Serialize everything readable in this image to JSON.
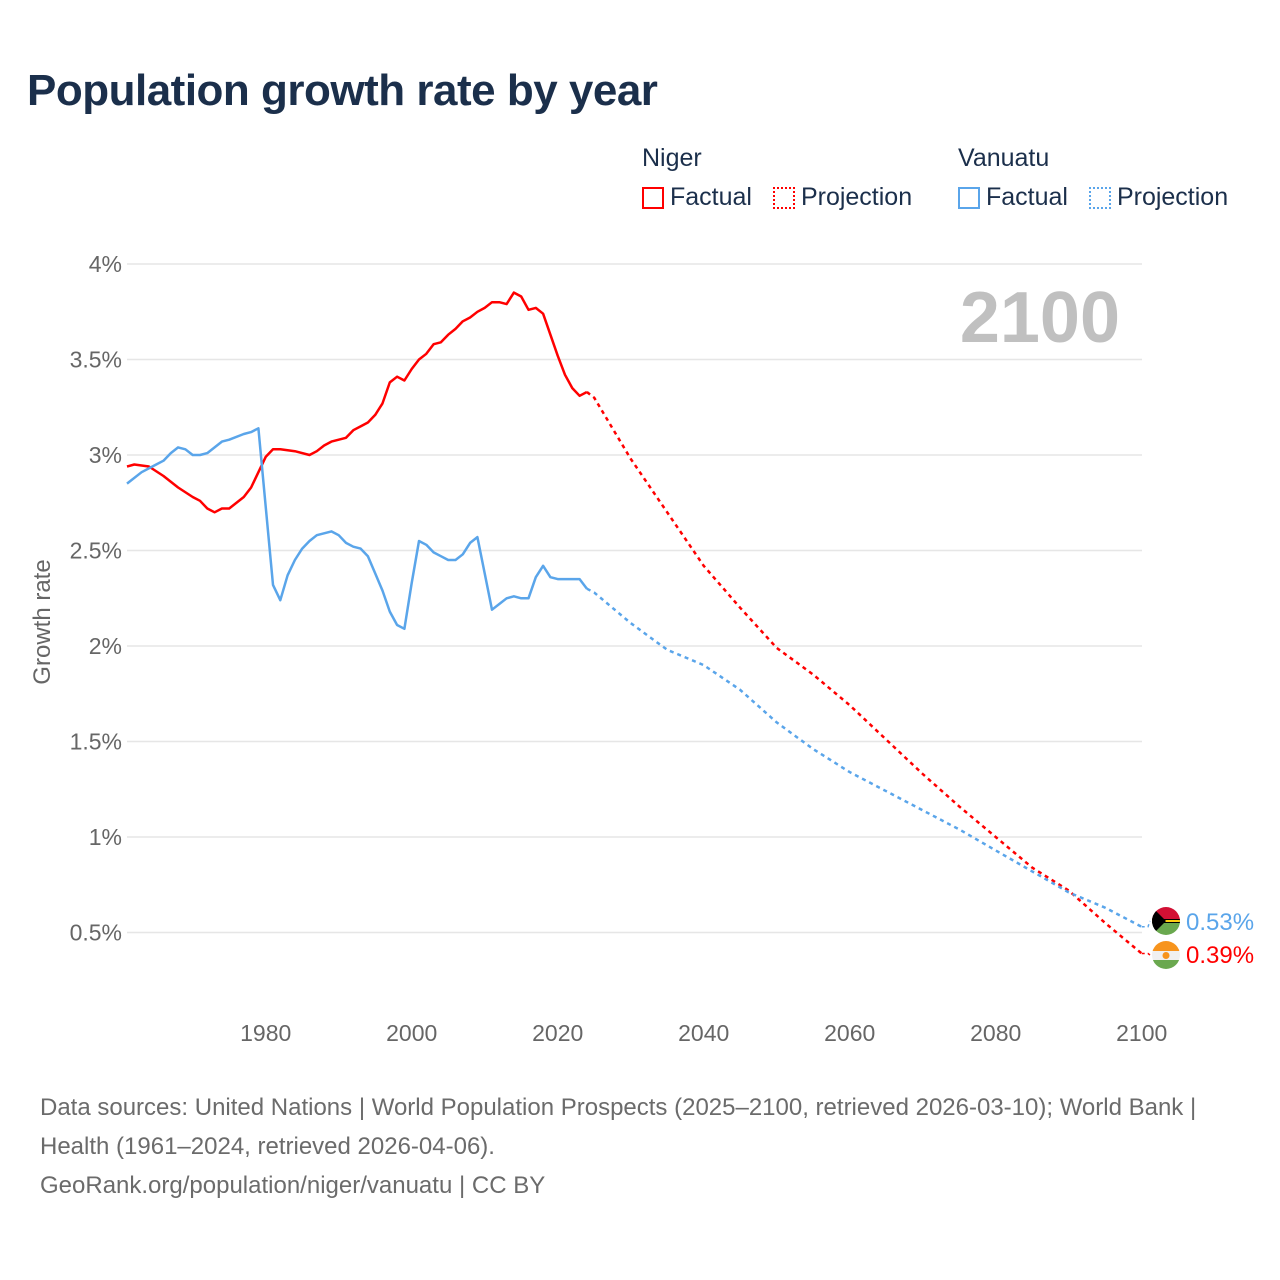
{
  "title": "Population growth rate by year",
  "legend": {
    "groups": [
      {
        "name": "Niger",
        "items": [
          "Factual",
          "Projection"
        ],
        "color": "#ff0000"
      },
      {
        "name": "Vanuatu",
        "items": [
          "Factual",
          "Projection"
        ],
        "color": "#5aa5ea"
      }
    ]
  },
  "year_display": "2100",
  "footer": {
    "sources": "Data sources: United Nations | World Population Prospects (2025–2100, retrieved 2026-03-10); World Bank | Health (1961–2024, retrieved 2026-04-06).",
    "link": "GeoRank.org/population/niger/vanuatu | CC BY"
  },
  "chart_data": {
    "type": "line",
    "title": "Population growth rate by year",
    "xlabel": "",
    "ylabel": "Growth rate",
    "xlim": [
      1961,
      2100
    ],
    "ylim": [
      0.2,
      4.0
    ],
    "x_ticks": [
      1980,
      2000,
      2020,
      2040,
      2060,
      2080,
      2100
    ],
    "y_ticks": [
      0.5,
      1,
      1.5,
      2,
      2.5,
      3,
      3.5,
      4
    ],
    "y_tick_labels": [
      "0.5%",
      "1%",
      "1.5%",
      "2%",
      "2.5%",
      "3%",
      "3.5%",
      "4%"
    ],
    "grid": true,
    "series": [
      {
        "name": "Niger",
        "color": "#ff0000",
        "end_label": "0.39%",
        "factual": {
          "x": [
            1961,
            1962,
            1964,
            1966,
            1968,
            1970,
            1971,
            1972,
            1973,
            1974,
            1975,
            1977,
            1978,
            1979,
            1980,
            1981,
            1982,
            1984,
            1986,
            1987,
            1988,
            1989,
            1991,
            1992,
            1993,
            1994,
            1995,
            1996,
            1997,
            1998,
            1999,
            2000,
            2001,
            2002,
            2003,
            2004,
            2005,
            2006,
            2007,
            2008,
            2009,
            2010,
            2011,
            2012,
            2013,
            2014,
            2015,
            2016,
            2017,
            2018,
            2019,
            2020,
            2021,
            2022,
            2023,
            2024
          ],
          "y": [
            2.94,
            2.95,
            2.94,
            2.89,
            2.83,
            2.78,
            2.76,
            2.72,
            2.7,
            2.72,
            2.72,
            2.78,
            2.83,
            2.91,
            2.99,
            3.03,
            3.03,
            3.02,
            3.0,
            3.02,
            3.05,
            3.07,
            3.09,
            3.13,
            3.15,
            3.17,
            3.21,
            3.27,
            3.38,
            3.41,
            3.39,
            3.45,
            3.5,
            3.53,
            3.58,
            3.59,
            3.63,
            3.66,
            3.7,
            3.72,
            3.75,
            3.77,
            3.8,
            3.8,
            3.79,
            3.85,
            3.83,
            3.76,
            3.77,
            3.74,
            3.63,
            3.52,
            3.42,
            3.35,
            3.31,
            3.33
          ]
        },
        "projection": {
          "x": [
            2024,
            2025,
            2030,
            2035,
            2040,
            2045,
            2050,
            2055,
            2060,
            2065,
            2070,
            2075,
            2080,
            2085,
            2090,
            2095,
            2100
          ],
          "y": [
            3.33,
            3.3,
            2.98,
            2.7,
            2.42,
            2.2,
            1.99,
            1.85,
            1.69,
            1.51,
            1.33,
            1.16,
            1.0,
            0.84,
            0.72,
            0.55,
            0.39
          ]
        }
      },
      {
        "name": "Vanuatu",
        "color": "#5aa5ea",
        "end_label": "0.53%",
        "factual": {
          "x": [
            1961,
            1963,
            1965,
            1966,
            1967,
            1968,
            1969,
            1970,
            1971,
            1972,
            1973,
            1974,
            1975,
            1977,
            1978,
            1979,
            1980,
            1981,
            1982,
            1983,
            1984,
            1985,
            1986,
            1987,
            1988,
            1989,
            1990,
            1991,
            1992,
            1993,
            1994,
            1995,
            1996,
            1997,
            1998,
            1999,
            2000,
            2001,
            2002,
            2003,
            2004,
            2005,
            2006,
            2007,
            2008,
            2009,
            2010,
            2011,
            2012,
            2013,
            2014,
            2015,
            2016,
            2017,
            2018,
            2019,
            2020,
            2021,
            2022,
            2023,
            2024
          ],
          "y": [
            2.85,
            2.91,
            2.95,
            2.97,
            3.01,
            3.04,
            3.03,
            3.0,
            3.0,
            3.01,
            3.04,
            3.07,
            3.08,
            3.11,
            3.12,
            3.14,
            2.73,
            2.32,
            2.24,
            2.37,
            2.45,
            2.51,
            2.55,
            2.58,
            2.59,
            2.6,
            2.58,
            2.54,
            2.52,
            2.51,
            2.47,
            2.38,
            2.29,
            2.18,
            2.11,
            2.09,
            2.33,
            2.55,
            2.53,
            2.49,
            2.47,
            2.45,
            2.45,
            2.48,
            2.54,
            2.57,
            2.38,
            2.19,
            2.22,
            2.25,
            2.26,
            2.25,
            2.25,
            2.36,
            2.42,
            2.36,
            2.35,
            2.35,
            2.35,
            2.35,
            2.3
          ]
        },
        "projection": {
          "x": [
            2024,
            2025,
            2030,
            2035,
            2040,
            2045,
            2050,
            2055,
            2060,
            2065,
            2070,
            2075,
            2080,
            2085,
            2090,
            2095,
            2100
          ],
          "y": [
            2.3,
            2.28,
            2.12,
            1.98,
            1.9,
            1.77,
            1.6,
            1.46,
            1.34,
            1.24,
            1.14,
            1.04,
            0.93,
            0.82,
            0.71,
            0.63,
            0.53
          ]
        }
      }
    ]
  }
}
